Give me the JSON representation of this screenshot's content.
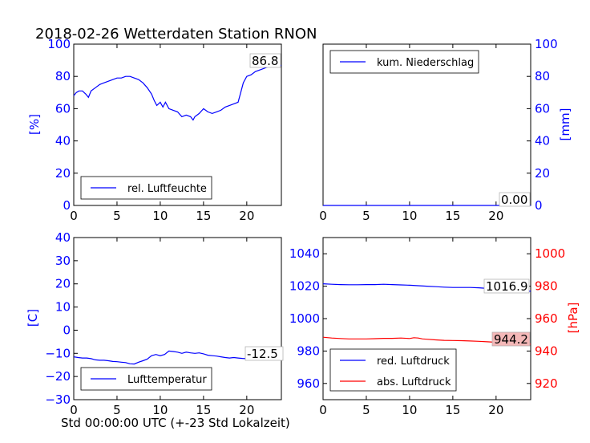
{
  "title": "2018-02-26 Wetterdaten Station RNON",
  "xlabel": "Std 00:00:00 UTC (+-23 Std Lokalzeit)",
  "colors": {
    "blue": "#0000ff",
    "red": "#ff0000",
    "red_box": "#f4b8b8",
    "box_edge": "#000000"
  },
  "chart_data": [
    {
      "type": "line",
      "id": "humidity",
      "ylabel": "[%]",
      "y_side": "left",
      "xlim": [
        0,
        24
      ],
      "ylim": [
        0,
        100
      ],
      "xticks": [
        0,
        5,
        10,
        15,
        20
      ],
      "yticks": [
        0,
        20,
        40,
        60,
        80,
        100
      ],
      "legend": "lower-left",
      "grid": false,
      "annotation": "86.8",
      "series": [
        {
          "name": "rel. Luftfeuchte",
          "color": "#0000ff",
          "x": [
            0,
            0.3,
            0.6,
            1,
            1.4,
            1.7,
            2,
            2.5,
            3,
            3.5,
            4,
            4.5,
            5,
            5.5,
            6,
            6.5,
            7,
            7.5,
            8,
            8.5,
            9,
            9.3,
            9.6,
            10,
            10.3,
            10.6,
            11,
            11.5,
            12,
            12.5,
            13,
            13.5,
            13.8,
            14,
            14.5,
            15,
            15.5,
            16,
            16.5,
            17,
            17.5,
            18,
            18.5,
            19,
            19.3,
            19.6,
            20,
            20.5,
            21,
            21.5,
            22,
            22.5,
            23,
            23.5,
            24
          ],
          "y": [
            68,
            70,
            71,
            71,
            69,
            67,
            71,
            73,
            75,
            76,
            77,
            78,
            79,
            79,
            80,
            80,
            79,
            78,
            76,
            73,
            69,
            65,
            62,
            64,
            61,
            64,
            60,
            59,
            58,
            55,
            56,
            55,
            53,
            55,
            57,
            60,
            58,
            57,
            58,
            59,
            61,
            62,
            63,
            64,
            70,
            76,
            80,
            81,
            83,
            84,
            85,
            86,
            86.5,
            86.8,
            86.8
          ]
        }
      ]
    },
    {
      "type": "line",
      "id": "precip",
      "ylabel": "[mm]",
      "y_side": "right",
      "xlim": [
        0,
        24
      ],
      "ylim": [
        0,
        100
      ],
      "xticks": [
        0,
        5,
        10,
        15,
        20
      ],
      "yticks": [
        0,
        20,
        40,
        60,
        80,
        100
      ],
      "legend": "upper-left",
      "grid": false,
      "annotation": "0.00",
      "series": [
        {
          "name": "kum. Niederschlag",
          "color": "#0000ff",
          "x": [
            0,
            24
          ],
          "y": [
            0,
            0
          ]
        }
      ]
    },
    {
      "type": "line",
      "id": "temperature",
      "ylabel": "[C]",
      "y_side": "left",
      "xlim": [
        0,
        24
      ],
      "ylim": [
        -30,
        40
      ],
      "xticks": [
        0,
        5,
        10,
        15,
        20
      ],
      "yticks": [
        -30,
        -20,
        -10,
        0,
        10,
        20,
        30,
        40
      ],
      "legend": "lower-left",
      "grid": false,
      "annotation": "-12.5",
      "series": [
        {
          "name": "Lufttemperatur",
          "color": "#0000ff",
          "x": [
            0,
            0.5,
            1,
            1.5,
            2,
            2.5,
            3,
            3.5,
            4,
            4.5,
            5,
            5.5,
            6,
            6.5,
            7,
            7.5,
            8,
            8.5,
            9,
            9.5,
            10,
            10.5,
            11,
            11.5,
            12,
            12.5,
            13,
            13.5,
            14,
            14.5,
            15,
            15.5,
            16,
            16.5,
            17,
            17.5,
            18,
            18.5,
            19,
            19.5,
            20,
            20.5,
            21,
            21.5,
            22,
            22.5,
            23,
            23.5,
            24
          ],
          "y": [
            -11.5,
            -11.8,
            -12,
            -12,
            -12.3,
            -12.8,
            -13,
            -13,
            -13.2,
            -13.5,
            -13.6,
            -13.8,
            -14,
            -14.5,
            -14.6,
            -13.8,
            -13.2,
            -12.5,
            -11,
            -10.5,
            -11,
            -10.5,
            -9,
            -9.2,
            -9.5,
            -10,
            -9.5,
            -9.8,
            -10,
            -9.8,
            -10.2,
            -10.8,
            -11,
            -11.2,
            -11.5,
            -11.8,
            -12,
            -11.8,
            -12,
            -12.2,
            -12.3,
            -12.4,
            -12.5,
            -12.3,
            -12.5,
            -12.6,
            -12.5,
            -12.5,
            -12.5
          ]
        }
      ]
    },
    {
      "type": "line",
      "id": "pressure",
      "ylabel": "[hPa]",
      "y_side": "both",
      "xlim": [
        0,
        24
      ],
      "ylim_left": [
        950,
        1050
      ],
      "ylim_right": [
        910,
        1010
      ],
      "xticks": [
        0,
        5,
        10,
        15,
        20
      ],
      "yticks_left": [
        960,
        980,
        1000,
        1020,
        1040
      ],
      "yticks_right": [
        920,
        940,
        960,
        980,
        1000
      ],
      "legend": "lower-left",
      "grid": false,
      "annotations": [
        "1016.9",
        "944.2"
      ],
      "series": [
        {
          "name": "red. Luftdruck",
          "color": "#0000ff",
          "axis": "left",
          "x": [
            0,
            1,
            2,
            3,
            4,
            5,
            6,
            7,
            8,
            9,
            10,
            11,
            12,
            13,
            14,
            15,
            16,
            17,
            18,
            19,
            20,
            21,
            22,
            23,
            24
          ],
          "y": [
            1021.5,
            1021.2,
            1021,
            1020.9,
            1020.9,
            1021,
            1021,
            1021.2,
            1021,
            1020.8,
            1020.6,
            1020.3,
            1020,
            1019.7,
            1019.4,
            1019.2,
            1019.2,
            1019.2,
            1019,
            1018.6,
            1018.2,
            1017.8,
            1017.4,
            1017.1,
            1016.9
          ]
        },
        {
          "name": "abs. Luftdruck",
          "color": "#ff0000",
          "axis": "right",
          "x": [
            0,
            1,
            2,
            3,
            4,
            5,
            6,
            7,
            8,
            9,
            10,
            10.5,
            11,
            11.5,
            12,
            13,
            14,
            15,
            16,
            17,
            18,
            19,
            20,
            21,
            22,
            23,
            24
          ],
          "y": [
            948.5,
            948,
            947.7,
            947.5,
            947.5,
            947.5,
            947.6,
            947.8,
            947.8,
            948,
            947.7,
            948.2,
            948,
            947.5,
            947.3,
            946.9,
            946.6,
            946.5,
            946.4,
            946.2,
            946,
            945.7,
            945.4,
            945,
            944.7,
            944.4,
            944.2
          ]
        }
      ]
    }
  ]
}
